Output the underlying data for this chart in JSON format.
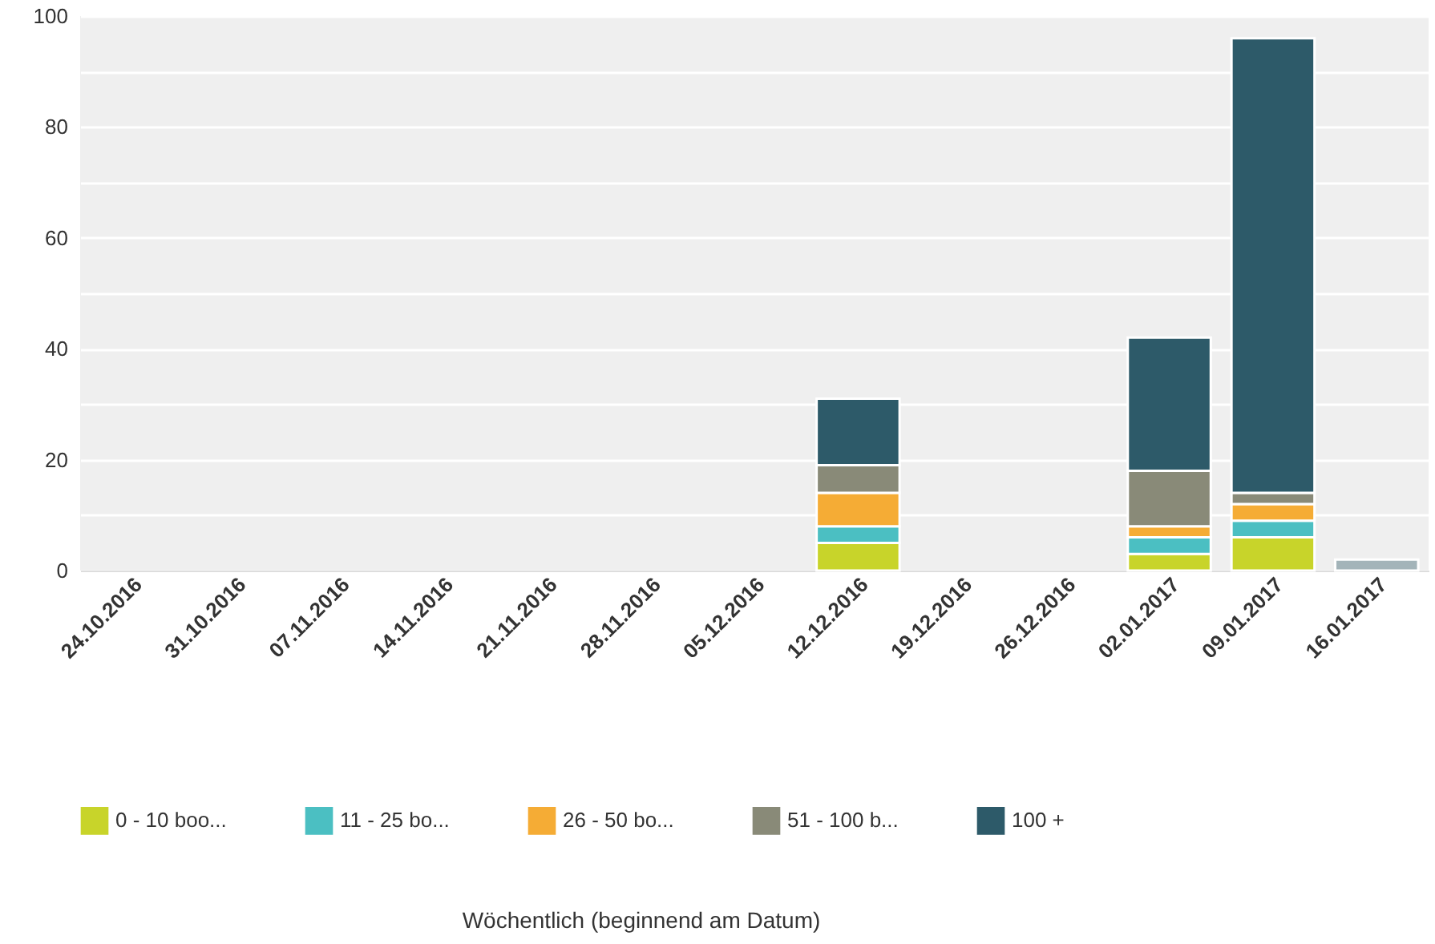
{
  "chart_data": {
    "type": "bar",
    "stacked": true,
    "annotations": [
      "Wöchentlich (beginnend am Datum)"
    ],
    "categories": [
      "24.10.2016",
      "31.10.2016",
      "07.11.2016",
      "14.11.2016",
      "21.11.2016",
      "28.11.2016",
      "05.12.2016",
      "12.12.2016",
      "19.12.2016",
      "26.12.2016",
      "02.01.2017",
      "09.01.2017",
      "16.01.2017"
    ],
    "series": [
      {
        "name": "0 - 10 boo...",
        "color": "#c8d42a",
        "values": [
          null,
          null,
          null,
          null,
          null,
          null,
          null,
          5,
          null,
          null,
          3,
          6,
          null
        ]
      },
      {
        "name": "11 - 25 bo...",
        "color": "#4bbfc2",
        "values": [
          null,
          null,
          null,
          null,
          null,
          null,
          null,
          3,
          null,
          null,
          3,
          3,
          null
        ]
      },
      {
        "name": "26 - 50 bo...",
        "color": "#f5ac35",
        "values": [
          null,
          null,
          null,
          null,
          null,
          null,
          null,
          6,
          null,
          null,
          2,
          3,
          null
        ]
      },
      {
        "name": "51 - 100 b...",
        "color": "#898a78",
        "values": [
          null,
          null,
          null,
          null,
          null,
          null,
          null,
          5,
          null,
          null,
          10,
          2,
          null
        ]
      },
      {
        "name": "100 +",
        "color": "#2d5a69",
        "values": [
          null,
          null,
          null,
          null,
          null,
          null,
          null,
          12,
          null,
          null,
          24,
          82,
          null
        ]
      },
      {
        "color": "#a3b4b9",
        "values": [
          null,
          null,
          null,
          null,
          null,
          null,
          null,
          null,
          null,
          null,
          null,
          null,
          2
        ]
      }
    ],
    "ylim": [
      0,
      100
    ],
    "yticks": [
      0,
      {
        "value": 10,
        "label": null
      },
      20,
      {
        "value": 30,
        "label": null
      },
      40,
      {
        "value": 50,
        "label": null
      },
      60,
      {
        "value": 70,
        "label": null
      },
      80,
      {
        "value": 90,
        "label": null
      },
      100
    ],
    "grid": true,
    "legend": "bottom"
  }
}
